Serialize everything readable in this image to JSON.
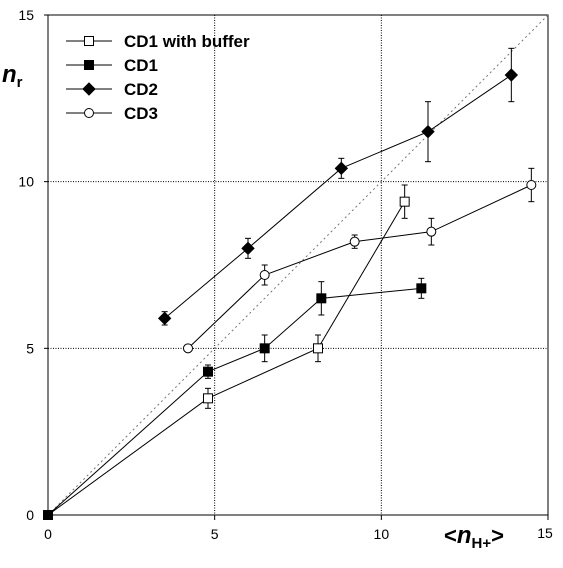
{
  "chart_data": {
    "type": "scatter",
    "xlim": [
      0,
      15
    ],
    "ylim": [
      0,
      15
    ],
    "x_ticks": [
      0,
      5,
      10,
      15
    ],
    "y_ticks": [
      0,
      5,
      10,
      15
    ],
    "grid": true,
    "legend_placement": "top-left",
    "reference_line": {
      "style": "dotted",
      "from": [
        0,
        0
      ],
      "to": [
        15,
        15
      ]
    },
    "ylabel": {
      "main": "n",
      "sub": "r"
    },
    "xlabel": {
      "open": "<",
      "main": "n",
      "sub": "H+",
      "close": ">"
    },
    "series": [
      {
        "name": "CD1 with buffer",
        "marker": "open-square",
        "points": [
          {
            "x": 0,
            "y": 0,
            "err": 0
          },
          {
            "x": 4.8,
            "y": 3.5,
            "err": 0.3
          },
          {
            "x": 8.1,
            "y": 5.0,
            "err": 0.4
          },
          {
            "x": 10.7,
            "y": 9.4,
            "err": 0.5
          }
        ]
      },
      {
        "name": "CD1",
        "marker": "filled-square",
        "points": [
          {
            "x": 0,
            "y": 0,
            "err": 0
          },
          {
            "x": 4.8,
            "y": 4.3,
            "err": 0.2
          },
          {
            "x": 6.5,
            "y": 5.0,
            "err": 0.4
          },
          {
            "x": 8.2,
            "y": 6.5,
            "err": 0.5
          },
          {
            "x": 11.2,
            "y": 6.8,
            "err": 0.3
          }
        ]
      },
      {
        "name": "CD2",
        "marker": "filled-diamond",
        "points": [
          {
            "x": 3.5,
            "y": 5.9,
            "err": 0.2
          },
          {
            "x": 6.0,
            "y": 8.0,
            "err": 0.3
          },
          {
            "x": 8.8,
            "y": 10.4,
            "err": 0.3
          },
          {
            "x": 11.4,
            "y": 11.5,
            "err": 0.9
          },
          {
            "x": 13.9,
            "y": 13.2,
            "err": 0.8
          }
        ]
      },
      {
        "name": "CD3",
        "marker": "open-circle",
        "points": [
          {
            "x": 4.2,
            "y": 5.0,
            "err": 0
          },
          {
            "x": 6.5,
            "y": 7.2,
            "err": 0.3
          },
          {
            "x": 9.2,
            "y": 8.2,
            "err": 0.2
          },
          {
            "x": 11.5,
            "y": 8.5,
            "err": 0.4
          },
          {
            "x": 14.5,
            "y": 9.9,
            "err": 0.5
          }
        ]
      }
    ]
  }
}
